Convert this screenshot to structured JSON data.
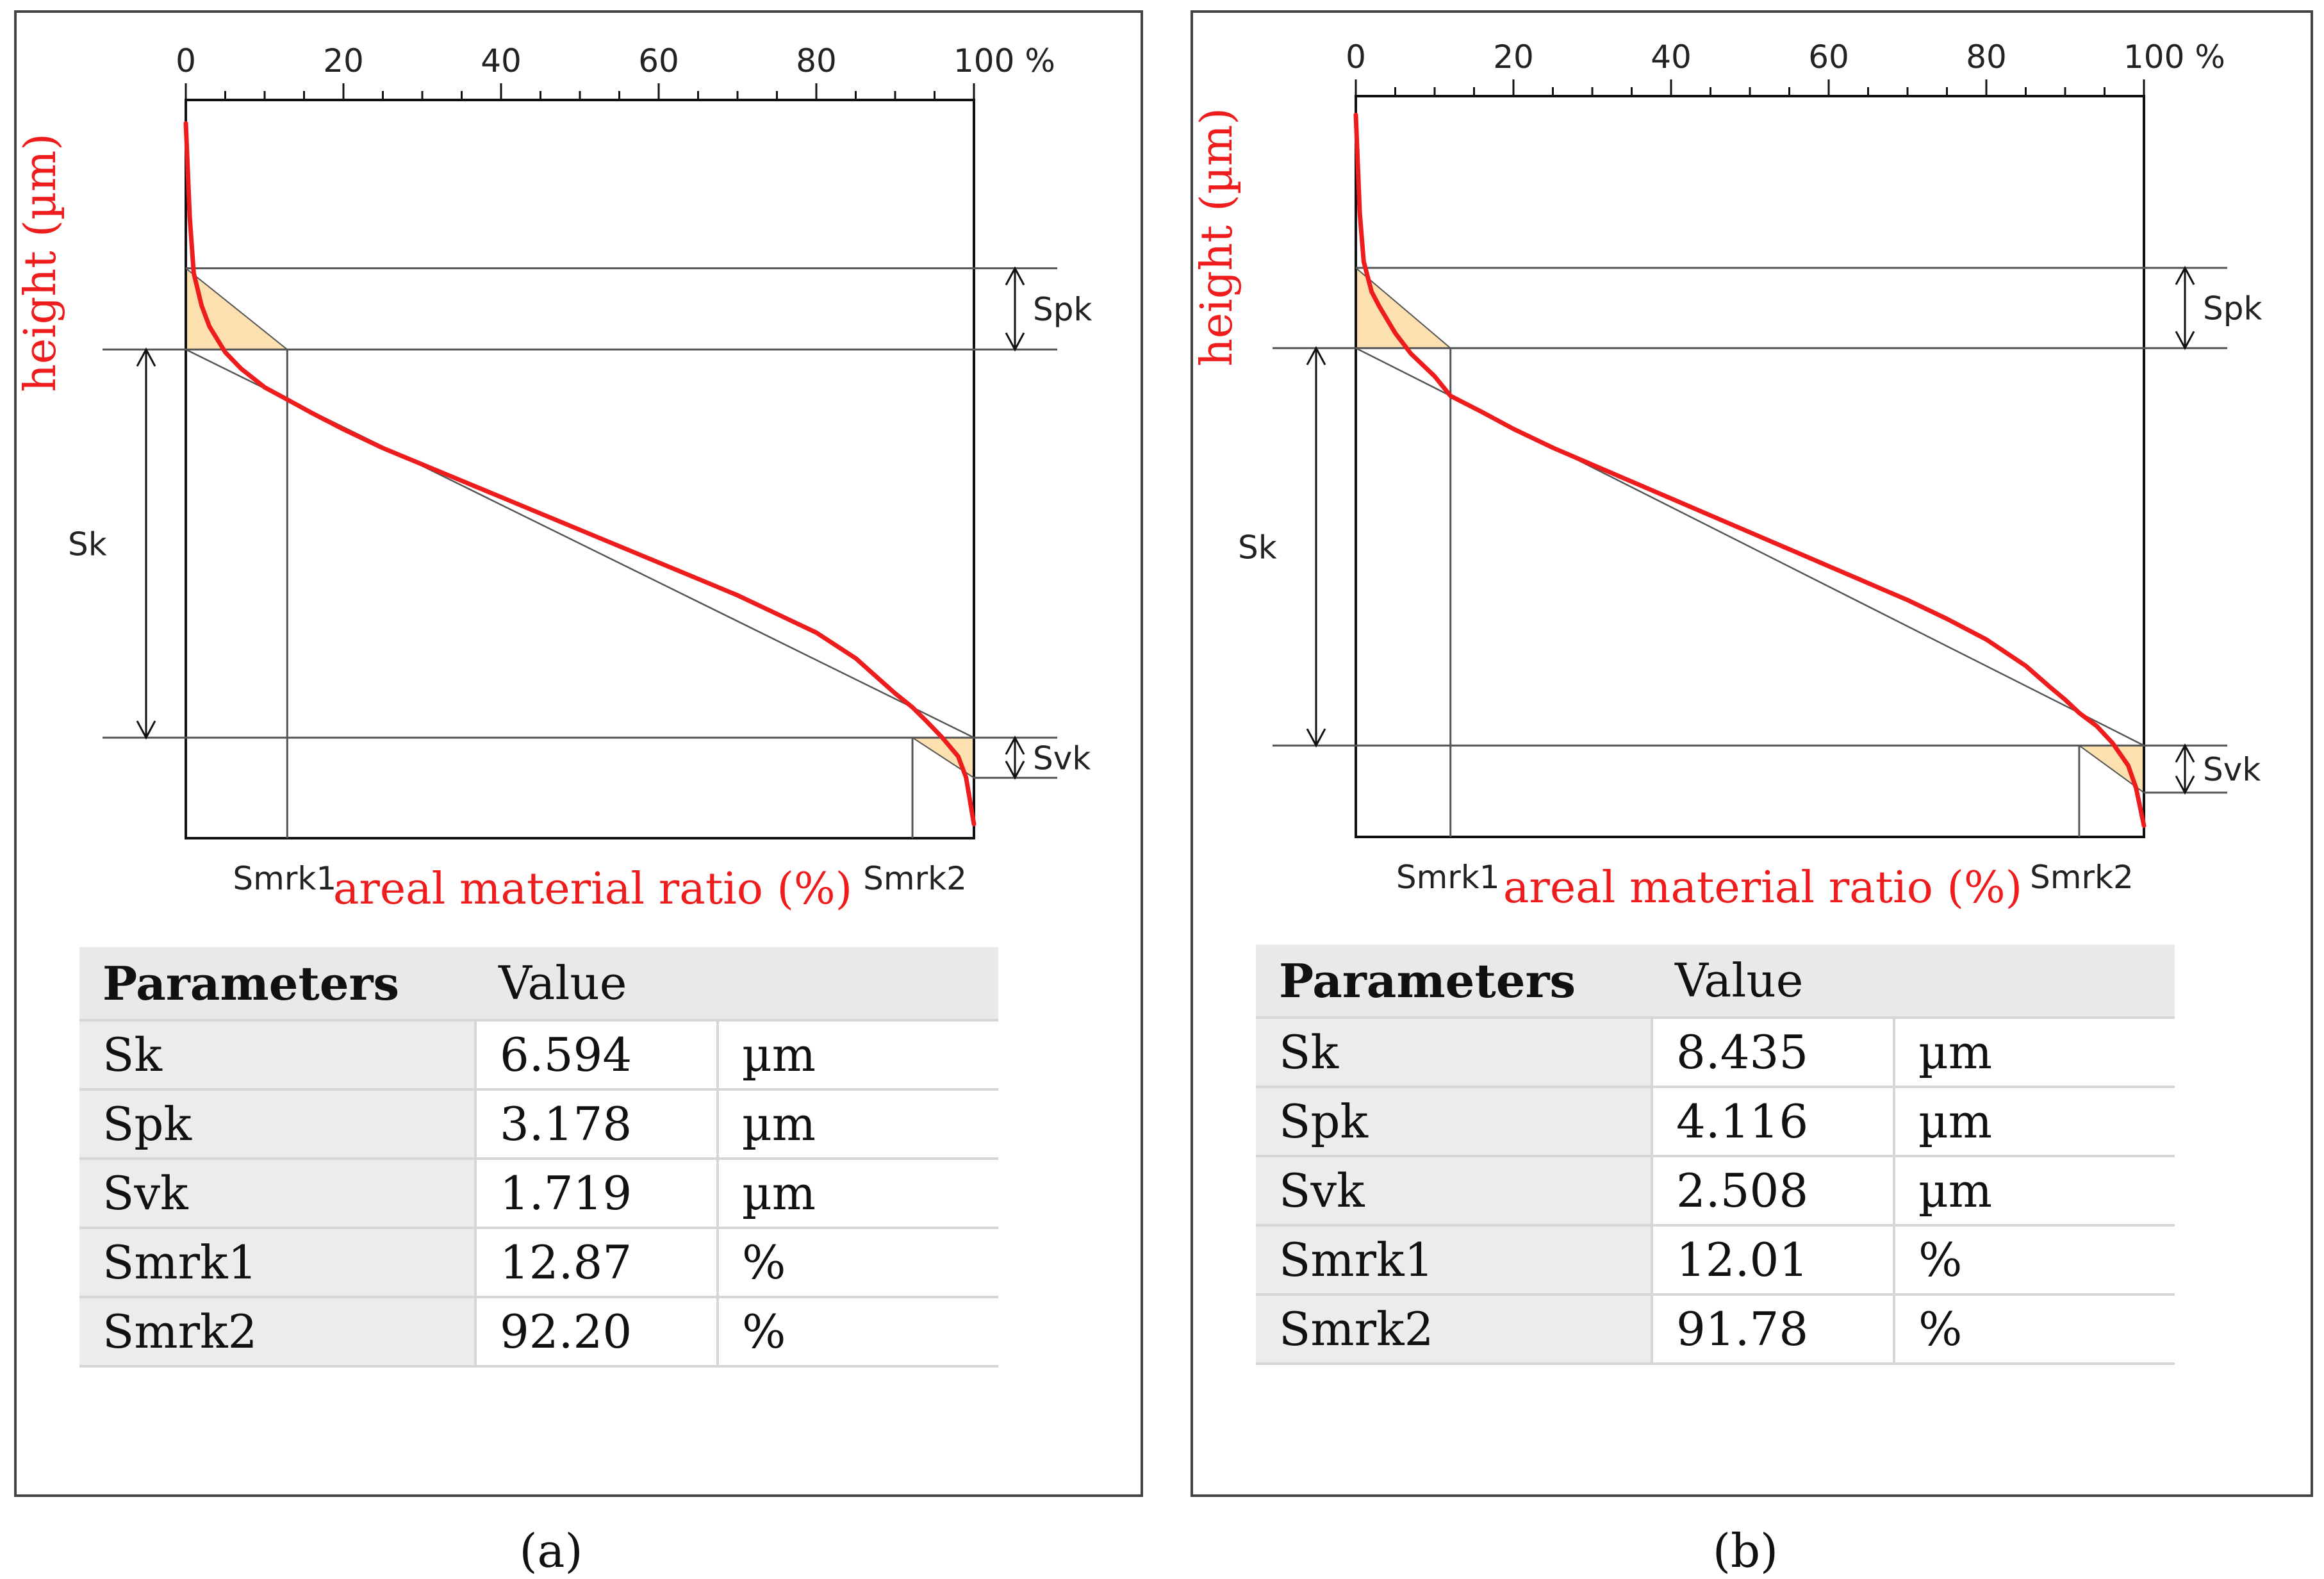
{
  "chart_data": [
    {
      "type": "line",
      "panel": "a",
      "caption": "(a)",
      "xlabel": "areal material ratio (%)",
      "ylabel": "height (µm)",
      "xlim": [
        0,
        100
      ],
      "x_ticks": [
        "0",
        "20",
        "40",
        "60",
        "80",
        "100 %"
      ],
      "annotations": {
        "spk": "Spk",
        "sk": "Sk",
        "svk": "Svk",
        "smrk1": "Smrk1",
        "smrk2": "Smrk2"
      },
      "smrk1": 12.87,
      "smrk2": 92.2,
      "series": [
        {
          "x": [
            0,
            0.5,
            1,
            2,
            3,
            5,
            7,
            10,
            12.87,
            16,
            20,
            25,
            30,
            35,
            40,
            45,
            50,
            55,
            60,
            65,
            70,
            75,
            80,
            85,
            88,
            90,
            92.2,
            94,
            96,
            98,
            99,
            100
          ],
          "y": [
            12.5,
            10.5,
            9.3,
            8.6,
            8.15,
            7.6,
            7.25,
            6.85,
            6.59,
            6.3,
            5.95,
            5.55,
            5.2,
            4.85,
            4.5,
            4.15,
            3.8,
            3.45,
            3.1,
            2.75,
            2.4,
            2.0,
            1.6,
            1.05,
            0.6,
            0.3,
            0.0,
            -0.3,
            -0.65,
            -1.05,
            -1.5,
            -2.5
          ]
        }
      ],
      "table": {
        "headers": [
          "Parameters",
          "Value"
        ],
        "rows": [
          {
            "name": "Sk",
            "value": "6.594",
            "unit": "µm"
          },
          {
            "name": "Spk",
            "value": "3.178",
            "unit": "µm"
          },
          {
            "name": "Svk",
            "value": "1.719",
            "unit": "µm"
          },
          {
            "name": "Smrk1",
            "value": "12.87",
            "unit": "%"
          },
          {
            "name": "Smrk2",
            "value": "92.20",
            "unit": "%"
          }
        ]
      }
    },
    {
      "type": "line",
      "panel": "b",
      "caption": "(b)",
      "xlabel": "areal material ratio (%)",
      "ylabel": "height (µm)",
      "xlim": [
        0,
        100
      ],
      "x_ticks": [
        "0",
        "20",
        "40",
        "60",
        "80",
        "100 %"
      ],
      "annotations": {
        "spk": "Spk",
        "sk": "Sk",
        "svk": "Svk",
        "smrk1": "Smrk1",
        "smrk2": "Smrk2"
      },
      "smrk1": 12.01,
      "smrk2": 91.78,
      "series": [
        {
          "x": [
            0,
            0.5,
            1,
            2,
            3,
            5,
            7,
            10,
            12.01,
            16,
            20,
            25,
            30,
            35,
            40,
            45,
            50,
            55,
            60,
            65,
            70,
            75,
            80,
            85,
            88,
            90,
            91.78,
            94,
            96,
            98,
            99,
            100
          ],
          "y": [
            15.9,
            13.3,
            12.0,
            11.2,
            10.8,
            10.1,
            9.55,
            8.95,
            8.43,
            8.0,
            7.55,
            7.05,
            6.6,
            6.15,
            5.7,
            5.25,
            4.8,
            4.35,
            3.9,
            3.45,
            3.0,
            2.5,
            1.95,
            1.25,
            0.7,
            0.35,
            0.0,
            -0.35,
            -0.8,
            -1.4,
            -2.0,
            -3.0
          ]
        }
      ],
      "table": {
        "headers": [
          "Parameters",
          "Value"
        ],
        "rows": [
          {
            "name": "Sk",
            "value": "8.435",
            "unit": "µm"
          },
          {
            "name": "Spk",
            "value": "4.116",
            "unit": "µm"
          },
          {
            "name": "Svk",
            "value": "2.508",
            "unit": "µm"
          },
          {
            "name": "Smrk1",
            "value": "12.01",
            "unit": "%"
          },
          {
            "name": "Smrk2",
            "value": "91.78",
            "unit": "%"
          }
        ]
      }
    }
  ],
  "colors": {
    "curve": "#ee1c1c",
    "fill": "#fde0b0",
    "axis": "#111111",
    "line": "#555555"
  }
}
